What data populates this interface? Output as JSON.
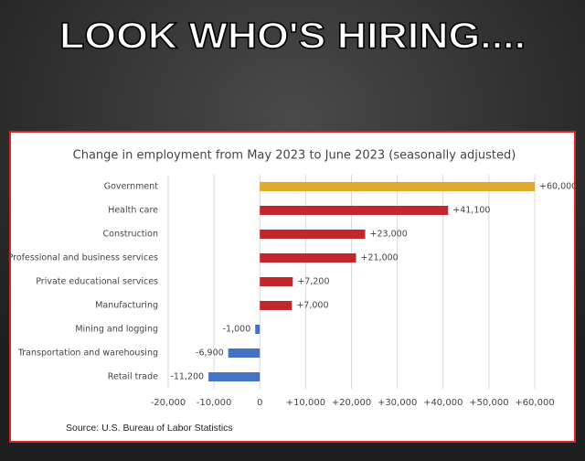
{
  "banner": "LOOK WHO'S HIRING....",
  "chart_data": {
    "type": "bar",
    "orientation": "horizontal",
    "title": "Change in employment from May 2023 to June 2023 (seasonally adjusted)",
    "categories": [
      "Government",
      "Health care",
      "Construction",
      "Professional and business services",
      "Private educational services",
      "Manufacturing",
      "Mining and logging",
      "Transportation and warehousing",
      "Retail trade"
    ],
    "values": [
      60000,
      41100,
      23000,
      21000,
      7200,
      7000,
      -1000,
      -6900,
      -11200
    ],
    "value_labels": [
      "+60,000",
      "+41,100",
      "+23,000",
      "+21,000",
      "+7,200",
      "+7,000",
      "-1,000",
      "-6,900",
      "-11,200"
    ],
    "colors": [
      "#e2a829",
      "#c1272d",
      "#c1272d",
      "#c1272d",
      "#c1272d",
      "#c1272d",
      "#4472c4",
      "#4472c4",
      "#4472c4"
    ],
    "xlim": [
      -20000,
      60000
    ],
    "xticks": [
      {
        "value": -20000,
        "label": "-20,000"
      },
      {
        "value": -10000,
        "label": "-10,000"
      },
      0,
      {
        "value": 10000,
        "label": "+10,000"
      },
      {
        "value": 20000,
        "label": "+20,000"
      },
      {
        "value": 30000,
        "label": "+30,000"
      },
      {
        "value": 40000,
        "label": "+40,000"
      },
      {
        "value": 50000,
        "label": "+50,000"
      },
      {
        "value": 60000,
        "label": "+60,000"
      }
    ],
    "grid": true,
    "source": "Source: U.S. Bureau of Labor Statistics"
  }
}
